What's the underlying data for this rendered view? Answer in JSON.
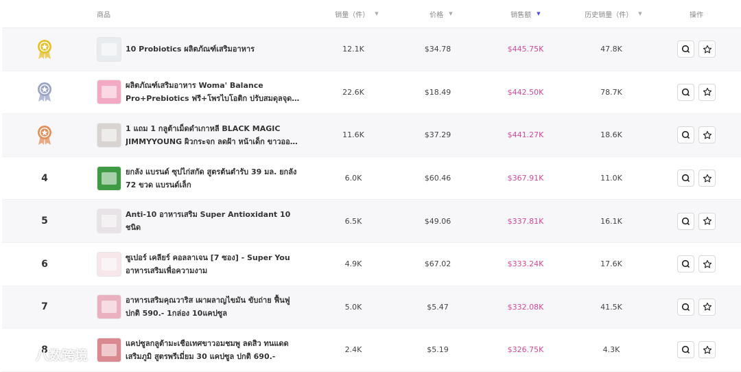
{
  "header": {
    "product": "商品",
    "sales_volume": "销量（件）",
    "price": "价格",
    "sales_amount": "销售额",
    "history_sales": "历史销量（件）",
    "actions": "操作",
    "sort_icon": "caret-down-icon",
    "active_sort_color": "#4a4ad6"
  },
  "rows": [
    {
      "rank": "1",
      "medal": "gold",
      "name": "10 Probiotics ผลิตภัณฑ์เสริมอาหาร",
      "sales_volume": "12.1K",
      "price": "$34.78",
      "sales_amount": "$445.75K",
      "history_sales": "47.8K",
      "thumb": "#e9ecef"
    },
    {
      "rank": "2",
      "medal": "silver",
      "name": "ผลิตภัณฑ์เสริมอาหาร Woma' Balance Pro+Prebiotics ฟรี+โพรไบโอติก ปรับสมดุลจุดซ่อน...",
      "sales_volume": "22.6K",
      "price": "$18.49",
      "sales_amount": "$442.50K",
      "history_sales": "78.7K",
      "thumb": "#f3a9c4"
    },
    {
      "rank": "3",
      "medal": "bronze",
      "name": "1 แถม 1 กลูต้าเม็ดดำเกาหลี BLACK MAGIC JIMMYYOUNG ผิวกระจก ลดฝ้า หน้าเด็ก ขาวออร่า...",
      "sales_volume": "11.6K",
      "price": "$37.29",
      "sales_amount": "$441.27K",
      "history_sales": "18.6K",
      "thumb": "#d9d4d2"
    },
    {
      "rank": "4",
      "medal": "",
      "name": "ยกลัง แบรนด์ ซุปไก่สกัด สูตรต้นตำรับ 39 มล. ยกลัง 72 ขวด แบรนด์เล็ก",
      "sales_volume": "6.0K",
      "price": "$60.46",
      "sales_amount": "$367.91K",
      "history_sales": "11.0K",
      "thumb": "#3f9a44"
    },
    {
      "rank": "5",
      "medal": "",
      "name": "Anti-10 อาหารเสริม Super Antioxidant 10 ชนิด",
      "sales_volume": "6.5K",
      "price": "$49.06",
      "sales_amount": "$337.81K",
      "history_sales": "16.1K",
      "thumb": "#e8e3e6"
    },
    {
      "rank": "6",
      "medal": "",
      "name": "ซูเปอร์ เคลียร์ คอลลาเจน [7 ซอง] - Super You อาหารเสริมเพื่อความงาม",
      "sales_volume": "4.9K",
      "price": "$67.02",
      "sales_amount": "$333.24K",
      "history_sales": "17.6K",
      "thumb": "#f7e7ea"
    },
    {
      "rank": "7",
      "medal": "",
      "name": "อาหารเสริมคุณวาริส เผาผลาญไขมัน ขับถ่าย ฟื้นฟู ปกติ 590.- 1กล่อง 10แคปซูล",
      "sales_volume": "5.0K",
      "price": "$5.47",
      "sales_amount": "$332.08K",
      "history_sales": "41.5K",
      "thumb": "#eab2c0"
    },
    {
      "rank": "8",
      "medal": "",
      "name": "แคปซูลกลูต้ามะเชือเทศขาวอมชมพู ลดสิว ทนแดด เสริมภูมิ สูตรพรีเมี่ยม 30 แคปซูล ปกติ 690.-",
      "sales_volume": "2.4K",
      "price": "$5.19",
      "sales_amount": "$326.75K",
      "history_sales": "4.3K",
      "thumb": "#d9898f"
    }
  ],
  "row_action_icons": [
    "search-icon",
    "star-icon"
  ],
  "watermark": {
    "text": "八数跨境",
    "logo_icon": "brand-logo-icon"
  },
  "colors": {
    "sales_amount": "#d5479a",
    "odd_row_bg": "#f7f7f9",
    "gold": "#e6c22a",
    "silver": "#9aa3c6",
    "bronze": "#e1905a"
  }
}
